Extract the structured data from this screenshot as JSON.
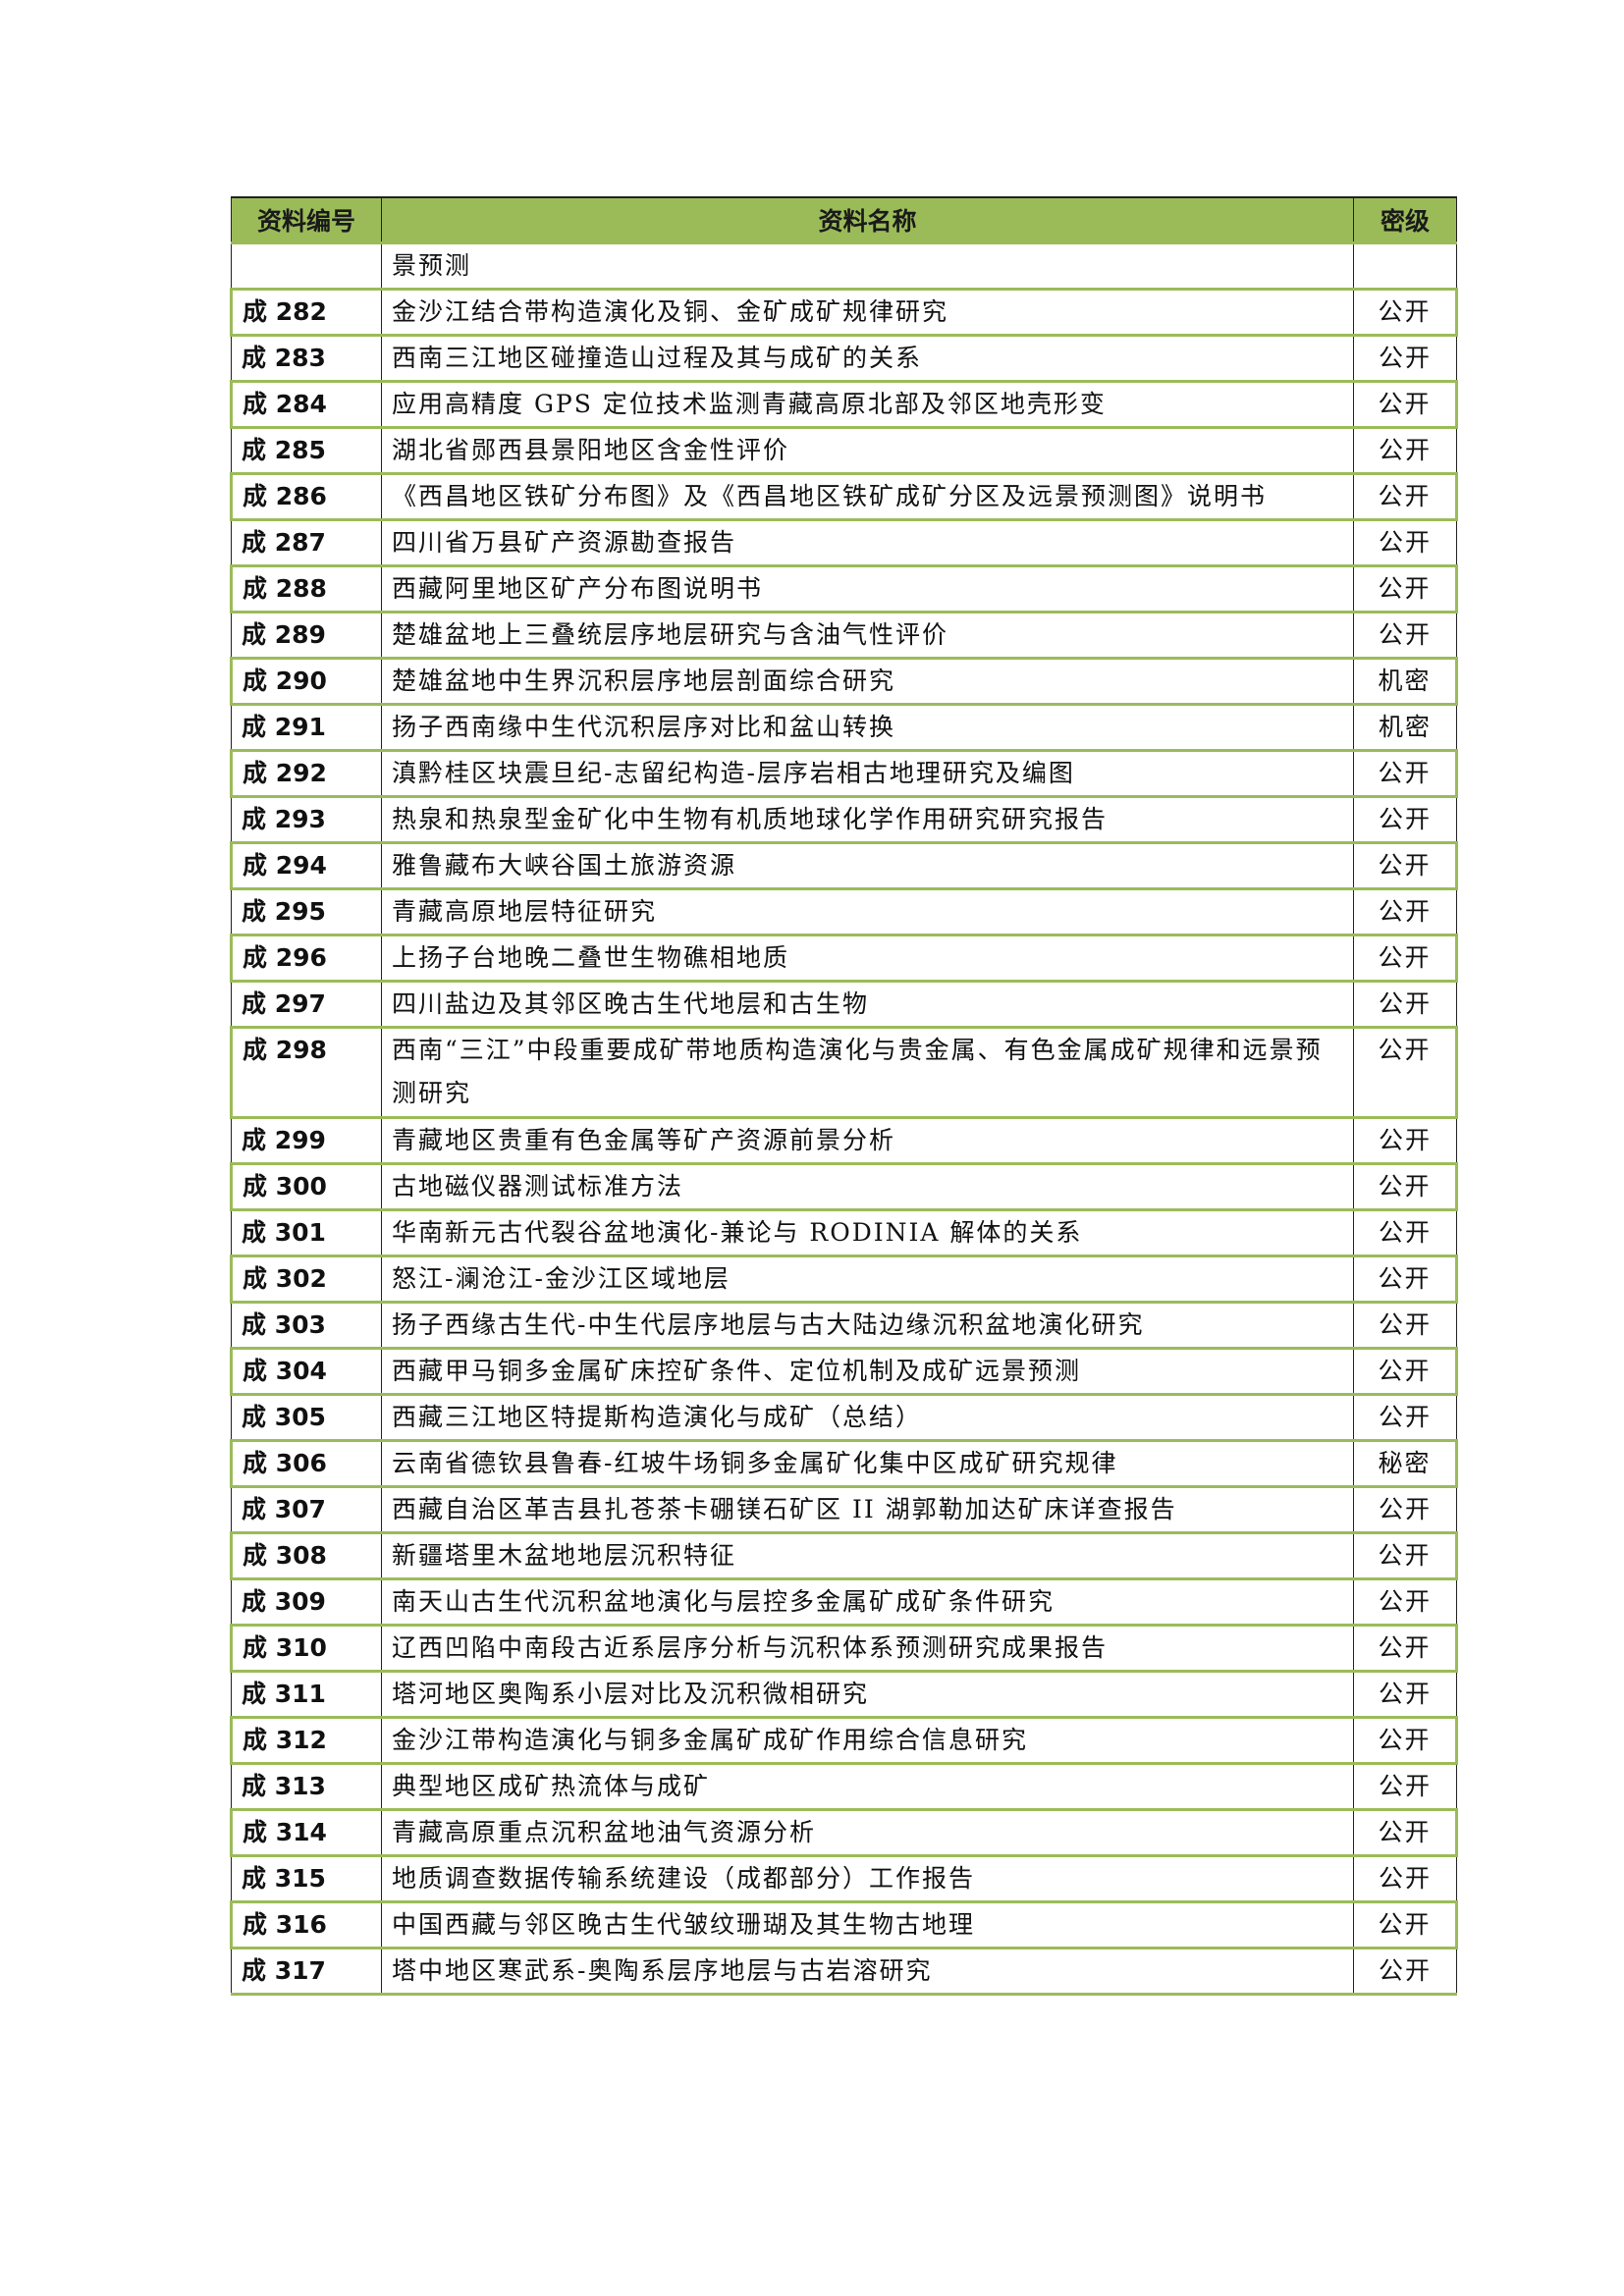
{
  "table": {
    "headers": {
      "id": "资料编号",
      "name": "资料名称",
      "level": "密级"
    },
    "accent_color": "#9bbb59",
    "rows": [
      {
        "id": "",
        "name": "景预测",
        "level": ""
      },
      {
        "id": "成 282",
        "name": "金沙江结合带构造演化及铜、金矿成矿规律研究",
        "level": "公开"
      },
      {
        "id": "成 283",
        "name": "西南三江地区碰撞造山过程及其与成矿的关系",
        "level": "公开"
      },
      {
        "id": "成 284",
        "name": "应用高精度 GPS 定位技术监测青藏高原北部及邻区地壳形变",
        "level": "公开"
      },
      {
        "id": "成 285",
        "name": "湖北省郧西县景阳地区含金性评价",
        "level": "公开"
      },
      {
        "id": "成 286",
        "name": "《西昌地区铁矿分布图》及《西昌地区铁矿成矿分区及远景预测图》说明书",
        "level": "公开"
      },
      {
        "id": "成 287",
        "name": "四川省万县矿产资源勘查报告",
        "level": "公开"
      },
      {
        "id": "成 288",
        "name": "西藏阿里地区矿产分布图说明书",
        "level": "公开"
      },
      {
        "id": "成 289",
        "name": "楚雄盆地上三叠统层序地层研究与含油气性评价",
        "level": "公开"
      },
      {
        "id": "成 290",
        "name": "楚雄盆地中生界沉积层序地层剖面综合研究",
        "level": "机密"
      },
      {
        "id": "成 291",
        "name": "扬子西南缘中生代沉积层序对比和盆山转换",
        "level": "机密"
      },
      {
        "id": "成 292",
        "name": "滇黔桂区块震旦纪-志留纪构造-层序岩相古地理研究及编图",
        "level": "公开"
      },
      {
        "id": "成 293",
        "name": "热泉和热泉型金矿化中生物有机质地球化学作用研究研究报告",
        "level": "公开"
      },
      {
        "id": "成 294",
        "name": "雅鲁藏布大峡谷国土旅游资源",
        "level": "公开"
      },
      {
        "id": "成 295",
        "name": "青藏高原地层特征研究",
        "level": "公开"
      },
      {
        "id": "成 296",
        "name": "上扬子台地晚二叠世生物礁相地质",
        "level": "公开"
      },
      {
        "id": "成 297",
        "name": "四川盐边及其邻区晚古生代地层和古生物",
        "level": "公开"
      },
      {
        "id": "成 298",
        "name": "西南“三江”中段重要成矿带地质构造演化与贵金属、有色金属成矿规律和远景预测研究",
        "level": "公开"
      },
      {
        "id": "成 299",
        "name": "青藏地区贵重有色金属等矿产资源前景分析",
        "level": "公开"
      },
      {
        "id": "成 300",
        "name": "古地磁仪器测试标准方法",
        "level": "公开"
      },
      {
        "id": "成 301",
        "name": "华南新元古代裂谷盆地演化-兼论与 RODINIA 解体的关系",
        "level": "公开"
      },
      {
        "id": "成 302",
        "name": "怒江-澜沧江-金沙江区域地层",
        "level": "公开"
      },
      {
        "id": "成 303",
        "name": "扬子西缘古生代-中生代层序地层与古大陆边缘沉积盆地演化研究",
        "level": "公开"
      },
      {
        "id": "成 304",
        "name": "西藏甲马铜多金属矿床控矿条件、定位机制及成矿远景预测",
        "level": "公开"
      },
      {
        "id": "成 305",
        "name": "西藏三江地区特提斯构造演化与成矿（总结）",
        "level": "公开"
      },
      {
        "id": "成 306",
        "name": "云南省德钦县鲁春-红坡牛场铜多金属矿化集中区成矿研究规律",
        "level": "秘密"
      },
      {
        "id": "成 307",
        "name": "西藏自治区革吉县扎苍茶卡硼镁石矿区 II 湖郭勒加达矿床详查报告",
        "level": "公开"
      },
      {
        "id": "成 308",
        "name": "新疆塔里木盆地地层沉积特征",
        "level": "公开"
      },
      {
        "id": "成 309",
        "name": "南天山古生代沉积盆地演化与层控多金属矿成矿条件研究",
        "level": "公开"
      },
      {
        "id": "成 310",
        "name": "辽西凹陷中南段古近系层序分析与沉积体系预测研究成果报告",
        "level": "公开"
      },
      {
        "id": "成 311",
        "name": "塔河地区奥陶系小层对比及沉积微相研究",
        "level": "公开"
      },
      {
        "id": "成 312",
        "name": "金沙江带构造演化与铜多金属矿成矿作用综合信息研究",
        "level": "公开"
      },
      {
        "id": "成 313",
        "name": "典型地区成矿热流体与成矿",
        "level": "公开"
      },
      {
        "id": "成 314",
        "name": "青藏高原重点沉积盆地油气资源分析",
        "level": "公开"
      },
      {
        "id": "成 315",
        "name": "地质调查数据传输系统建设（成都部分）工作报告",
        "level": "公开"
      },
      {
        "id": "成 316",
        "name": "中国西藏与邻区晚古生代皱纹珊瑚及其生物古地理",
        "level": "公开"
      },
      {
        "id": "成 317",
        "name": "塔中地区寒武系-奥陶系层序地层与古岩溶研究",
        "level": "公开"
      }
    ]
  }
}
